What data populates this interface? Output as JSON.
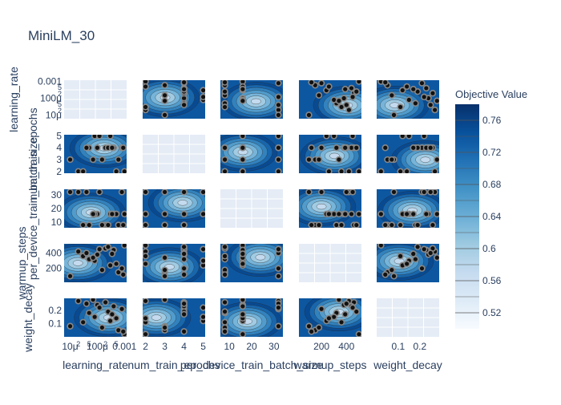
{
  "chart_data": {
    "type": "contour",
    "title": "MiniLM_30",
    "params": [
      "learning_rate",
      "num_train_epochs",
      "per_device_train_batch_size",
      "warmup_steps",
      "weight_decay"
    ],
    "axes": {
      "learning_rate": {
        "scale": "log",
        "range": [
          6e-06,
          0.0012
        ],
        "row_ticks": [
          {
            "value": 0.001,
            "label": "0.001"
          },
          {
            "value": 0.0005,
            "label": "5"
          },
          {
            "value": 0.0002,
            "label": "2"
          },
          {
            "value": 0.0001,
            "label": "100μ"
          },
          {
            "value": 5e-05,
            "label": "5"
          },
          {
            "value": 2e-05,
            "label": "2"
          },
          {
            "value": 1e-05,
            "label": "10μ"
          }
        ],
        "col_ticks": [
          {
            "value": 1e-05,
            "label": "10μ"
          },
          {
            "value": 2e-05,
            "label": "2"
          },
          {
            "value": 5e-05,
            "label": "5"
          },
          {
            "value": 0.0001,
            "label": "100μ"
          },
          {
            "value": 0.0002,
            "label": "2"
          },
          {
            "value": 0.0005,
            "label": "5"
          },
          {
            "value": 0.001,
            "label": "0.001"
          }
        ]
      },
      "num_train_epochs": {
        "scale": "linear",
        "range": [
          1.85,
          5.1
        ],
        "row_ticks": [
          {
            "value": 5,
            "label": "5"
          },
          {
            "value": 4,
            "label": "4"
          },
          {
            "value": 3,
            "label": "3"
          },
          {
            "value": 2,
            "label": "2"
          }
        ],
        "col_ticks": [
          {
            "value": 2,
            "label": "2"
          },
          {
            "value": 3,
            "label": "3"
          },
          {
            "value": 4,
            "label": "4"
          },
          {
            "value": 5,
            "label": "5"
          }
        ]
      },
      "per_device_train_batch_size": {
        "scale": "linear",
        "range": [
          6,
          34
        ],
        "row_ticks": [
          {
            "value": 30,
            "label": "30"
          },
          {
            "value": 20,
            "label": "20"
          },
          {
            "value": 10,
            "label": "10"
          }
        ],
        "col_ticks": [
          {
            "value": 10,
            "label": "10"
          },
          {
            "value": 20,
            "label": "20"
          },
          {
            "value": 30,
            "label": "30"
          }
        ]
      },
      "warmup_steps": {
        "scale": "linear",
        "range": [
          20,
          520
        ],
        "row_ticks": [
          {
            "value": 400,
            "label": "400"
          },
          {
            "value": 200,
            "label": "200"
          }
        ],
        "col_ticks": [
          {
            "value": 200,
            "label": "200"
          },
          {
            "value": 400,
            "label": "400"
          }
        ]
      },
      "weight_decay": {
        "scale": "linear",
        "range": [
          0.0,
          0.29
        ],
        "row_ticks": [
          {
            "value": 0.2,
            "label": "0.2"
          },
          {
            "value": 0.1,
            "label": "0.1"
          }
        ],
        "col_ticks": [
          {
            "value": 0.1,
            "label": "0.1"
          },
          {
            "value": 0.2,
            "label": "0.2"
          }
        ]
      }
    },
    "colorbar": {
      "title": "Objective Value",
      "range": [
        0.5,
        0.78
      ],
      "ticks": [
        0.76,
        0.72,
        0.68,
        0.64,
        0.6,
        0.56,
        0.52
      ],
      "tick_labels": [
        "0.76",
        "0.72",
        "0.68",
        "0.64",
        "0.6",
        "0.56",
        "0.52"
      ],
      "colorscale": [
        "#f7fbff",
        "#deebf7",
        "#c6dbef",
        "#9ecae1",
        "#6baed6",
        "#4292c6",
        "#2171b5",
        "#08519c",
        "#08306b"
      ]
    },
    "trials": [
      {
        "learning_rate": 0.0001,
        "num_train_epochs": 4,
        "per_device_train_batch_size": 16,
        "warmup_steps": 380,
        "weight_decay": 0.24
      },
      {
        "learning_rate": 0.0006,
        "num_train_epochs": 3,
        "per_device_train_batch_size": 8,
        "warmup_steps": 150,
        "weight_decay": 0.05
      },
      {
        "learning_rate": 2e-05,
        "num_train_epochs": 2,
        "per_device_train_batch_size": 32,
        "warmup_steps": 420,
        "weight_decay": 0.27
      },
      {
        "learning_rate": 0.0003,
        "num_train_epochs": 5,
        "per_device_train_batch_size": 16,
        "warmup_steps": 240,
        "weight_decay": 0.12
      },
      {
        "learning_rate": 5e-05,
        "num_train_epochs": 4,
        "per_device_train_batch_size": 8,
        "warmup_steps": 320,
        "weight_decay": 0.18
      },
      {
        "learning_rate": 0.001,
        "num_train_epochs": 2,
        "per_device_train_batch_size": 16,
        "warmup_steps": 500,
        "weight_decay": 0.02
      },
      {
        "learning_rate": 1e-05,
        "num_train_epochs": 3,
        "per_device_train_batch_size": 32,
        "warmup_steps": 100,
        "weight_decay": 0.08
      },
      {
        "learning_rate": 0.0002,
        "num_train_epochs": 4,
        "per_device_train_batch_size": 8,
        "warmup_steps": 460,
        "weight_decay": 0.26
      },
      {
        "learning_rate": 8e-05,
        "num_train_epochs": 5,
        "per_device_train_batch_size": 16,
        "warmup_steps": 300,
        "weight_decay": 0.15
      },
      {
        "learning_rate": 0.0008,
        "num_train_epochs": 4,
        "per_device_train_batch_size": 32,
        "warmup_steps": 200,
        "weight_decay": 0.21
      },
      {
        "learning_rate": 3e-05,
        "num_train_epochs": 2,
        "per_device_train_batch_size": 8,
        "warmup_steps": 360,
        "weight_decay": 0.11
      },
      {
        "learning_rate": 0.0004,
        "num_train_epochs": 4,
        "per_device_train_batch_size": 16,
        "warmup_steps": 440,
        "weight_decay": 0.23
      },
      {
        "learning_rate": 0.00015,
        "num_train_epochs": 3,
        "per_device_train_batch_size": 8,
        "warmup_steps": 180,
        "weight_decay": 0.07
      },
      {
        "learning_rate": 4e-05,
        "num_train_epochs": 4,
        "per_device_train_batch_size": 32,
        "warmup_steps": 400,
        "weight_decay": 0.25
      },
      {
        "learning_rate": 0.0005,
        "num_train_epochs": 2,
        "per_device_train_batch_size": 16,
        "warmup_steps": 260,
        "weight_decay": 0.14
      },
      {
        "learning_rate": 0.00025,
        "num_train_epochs": 4,
        "per_device_train_batch_size": 8,
        "warmup_steps": 480,
        "weight_decay": 0.19
      },
      {
        "learning_rate": 7e-05,
        "num_train_epochs": 3,
        "per_device_train_batch_size": 16,
        "warmup_steps": 340,
        "weight_decay": 0.28
      },
      {
        "learning_rate": 0.0009,
        "num_train_epochs": 4,
        "per_device_train_batch_size": 8,
        "warmup_steps": 120,
        "weight_decay": 0.04
      },
      {
        "learning_rate": 0.00012,
        "num_train_epochs": 5,
        "per_device_train_batch_size": 32,
        "warmup_steps": 450,
        "weight_decay": 0.22
      },
      {
        "learning_rate": 0.00035,
        "num_train_epochs": 4,
        "per_device_train_batch_size": 16,
        "warmup_steps": 390,
        "weight_decay": 0.17
      }
    ]
  }
}
